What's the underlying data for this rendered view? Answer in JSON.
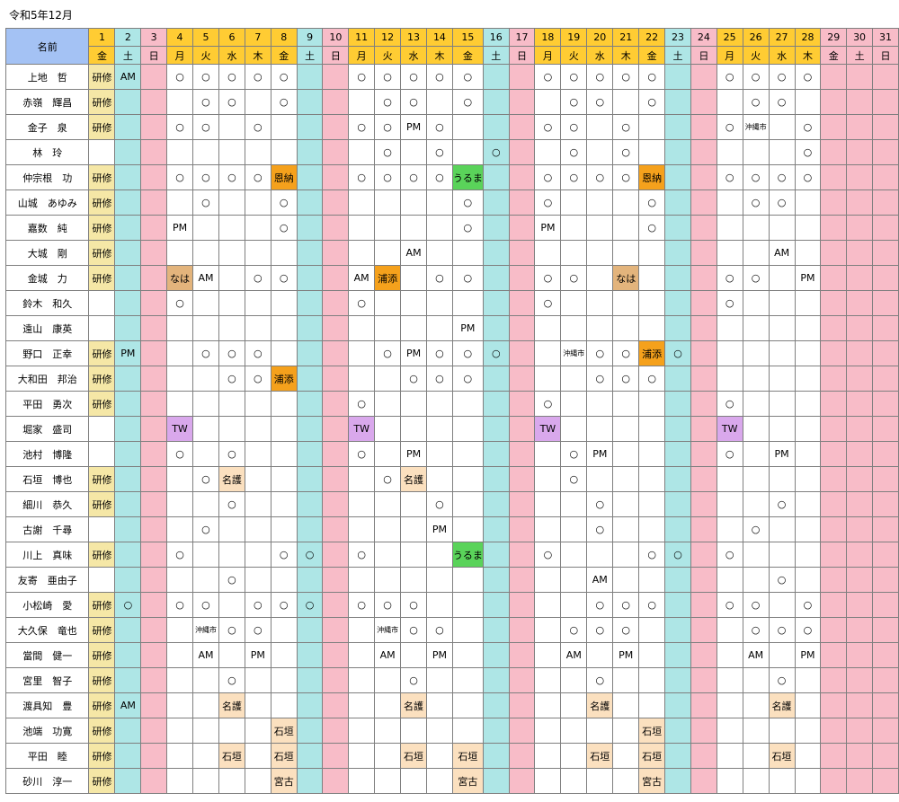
{
  "title": "令和5年12月",
  "name_header": "名前",
  "days": [
    {
      "d": "1",
      "w": "金",
      "t": "wd"
    },
    {
      "d": "2",
      "w": "土",
      "t": "sat"
    },
    {
      "d": "3",
      "w": "日",
      "t": "sun"
    },
    {
      "d": "4",
      "w": "月",
      "t": "wd"
    },
    {
      "d": "5",
      "w": "火",
      "t": "wd"
    },
    {
      "d": "6",
      "w": "水",
      "t": "wd"
    },
    {
      "d": "7",
      "w": "木",
      "t": "wd"
    },
    {
      "d": "8",
      "w": "金",
      "t": "wd"
    },
    {
      "d": "9",
      "w": "土",
      "t": "sat"
    },
    {
      "d": "10",
      "w": "日",
      "t": "sun"
    },
    {
      "d": "11",
      "w": "月",
      "t": "wd"
    },
    {
      "d": "12",
      "w": "火",
      "t": "wd"
    },
    {
      "d": "13",
      "w": "水",
      "t": "wd"
    },
    {
      "d": "14",
      "w": "木",
      "t": "wd"
    },
    {
      "d": "15",
      "w": "金",
      "t": "wd"
    },
    {
      "d": "16",
      "w": "土",
      "t": "sat"
    },
    {
      "d": "17",
      "w": "日",
      "t": "sun"
    },
    {
      "d": "18",
      "w": "月",
      "t": "wd"
    },
    {
      "d": "19",
      "w": "火",
      "t": "wd"
    },
    {
      "d": "20",
      "w": "水",
      "t": "wd"
    },
    {
      "d": "21",
      "w": "木",
      "t": "wd"
    },
    {
      "d": "22",
      "w": "金",
      "t": "wd"
    },
    {
      "d": "23",
      "w": "土",
      "t": "sat"
    },
    {
      "d": "24",
      "w": "日",
      "t": "sun"
    },
    {
      "d": "25",
      "w": "月",
      "t": "wd"
    },
    {
      "d": "26",
      "w": "火",
      "t": "wd"
    },
    {
      "d": "27",
      "w": "水",
      "t": "wd"
    },
    {
      "d": "28",
      "w": "木",
      "t": "wd"
    },
    {
      "d": "29",
      "w": "金",
      "t": "hol"
    },
    {
      "d": "30",
      "w": "土",
      "t": "hol"
    },
    {
      "d": "31",
      "w": "日",
      "t": "hol"
    }
  ],
  "badge_colors": {
    "kenshu": "#f5e7a6",
    "orange": "#f5a11c",
    "tan": "#e3b47c",
    "peach": "#fbe0bf",
    "green": "#5ad35a",
    "purple": "#d9a8ec",
    "saturday": "#aee6e6",
    "sunday": "#f8bcc8",
    "weekday_header": "#ffcc33",
    "name_header": "#a4c2f4"
  },
  "rows": [
    {
      "name": "上地　哲",
      "cells": {
        "1": "研修",
        "2": "AM",
        "4": "○",
        "5": "○",
        "6": "○",
        "7": "○",
        "8": "○",
        "11": "○",
        "12": "○",
        "13": "○",
        "14": "○",
        "15": "○",
        "18": "○",
        "19": "○",
        "20": "○",
        "21": "○",
        "22": "○",
        "25": "○",
        "26": "○",
        "27": "○",
        "28": "○"
      }
    },
    {
      "name": "赤嶺　輝昌",
      "cells": {
        "1": "研修",
        "5": "○",
        "6": "○",
        "8": "○",
        "12": "○",
        "13": "○",
        "15": "○",
        "19": "○",
        "20": "○",
        "22": "○",
        "26": "○",
        "27": "○"
      }
    },
    {
      "name": "金子　泉",
      "cells": {
        "1": "研修",
        "4": "○",
        "5": "○",
        "7": "○",
        "11": "○",
        "12": "○",
        "13": "PM",
        "14": "○",
        "18": "○",
        "19": "○",
        "21": "○",
        "25": "○",
        "26": "沖縄市",
        "28": "○"
      }
    },
    {
      "name": "林　玲",
      "cells": {
        "12": "○",
        "14": "○",
        "16": "○",
        "19": "○",
        "21": "○",
        "28": "○"
      }
    },
    {
      "name": "仲宗根　功",
      "cells": {
        "1": "研修",
        "4": "○",
        "5": "○",
        "6": "○",
        "7": "○",
        "8": "恩納",
        "11": "○",
        "12": "○",
        "13": "○",
        "14": "○",
        "15": "うるま",
        "18": "○",
        "19": "○",
        "20": "○",
        "21": "○",
        "22": "恩納",
        "25": "○",
        "26": "○",
        "27": "○",
        "28": "○"
      }
    },
    {
      "name": "山城　あゆみ",
      "cells": {
        "1": "研修",
        "5": "○",
        "8": "○",
        "15": "○",
        "18": "○",
        "22": "○",
        "26": "○",
        "27": "○"
      }
    },
    {
      "name": "嘉数　純",
      "cells": {
        "1": "研修",
        "4": "PM",
        "8": "○",
        "15": "○",
        "18": "PM",
        "22": "○"
      }
    },
    {
      "name": "大城　剛",
      "cells": {
        "1": "研修",
        "13": "AM",
        "27": "AM"
      }
    },
    {
      "name": "金城　力",
      "cells": {
        "1": "研修",
        "4": "なは",
        "5": "AM",
        "7": "○",
        "8": "○",
        "11": "AM",
        "12": "浦添",
        "14": "○",
        "15": "○",
        "18": "○",
        "19": "○",
        "21": "なは",
        "25": "○",
        "26": "○",
        "28": "PM"
      }
    },
    {
      "name": "鈴木　和久",
      "cells": {
        "4": "○",
        "11": "○",
        "18": "○",
        "25": "○"
      }
    },
    {
      "name": "遠山　康英",
      "cells": {
        "15": "PM"
      }
    },
    {
      "name": "野口　正幸",
      "cells": {
        "1": "研修",
        "2": "PM",
        "5": "○",
        "6": "○",
        "7": "○",
        "12": "○",
        "13": "PM",
        "14": "○",
        "15": "○",
        "16": "○",
        "19": "沖縄市",
        "20": "○",
        "21": "○",
        "22": "浦添",
        "23": "○"
      }
    },
    {
      "name": "大和田　邦治",
      "cells": {
        "1": "研修",
        "6": "○",
        "7": "○",
        "8": "浦添",
        "13": "○",
        "14": "○",
        "15": "○",
        "20": "○",
        "21": "○",
        "22": "○"
      }
    },
    {
      "name": "平田　勇次",
      "cells": {
        "1": "研修",
        "11": "○",
        "18": "○",
        "25": "○"
      }
    },
    {
      "name": "堀家　盛司",
      "cells": {
        "4": "TW",
        "11": "TW",
        "18": "TW",
        "25": "TW"
      }
    },
    {
      "name": "池村　博隆",
      "cells": {
        "4": "○",
        "6": "○",
        "11": "○",
        "13": "PM",
        "19": "○",
        "20": "PM",
        "25": "○",
        "27": "PM"
      }
    },
    {
      "name": "石垣　博也",
      "cells": {
        "1": "研修",
        "5": "○",
        "6": "名護",
        "12": "○",
        "13": "名護",
        "19": "○"
      }
    },
    {
      "name": "細川　恭久",
      "cells": {
        "1": "研修",
        "6": "○",
        "14": "○",
        "20": "○",
        "27": "○"
      }
    },
    {
      "name": "古謝　千尋",
      "cells": {
        "5": "○",
        "14": "PM",
        "20": "○",
        "26": "○"
      }
    },
    {
      "name": "川上　真味",
      "cells": {
        "1": "研修",
        "4": "○",
        "8": "○",
        "9": "○",
        "11": "○",
        "15": "うるま",
        "18": "○",
        "22": "○",
        "23": "○",
        "25": "○"
      }
    },
    {
      "name": "友寄　亜由子",
      "cells": {
        "6": "○",
        "20": "AM",
        "27": "○"
      }
    },
    {
      "name": "小松崎　愛",
      "cells": {
        "1": "研修",
        "2": "○",
        "4": "○",
        "5": "○",
        "7": "○",
        "8": "○",
        "9": "○",
        "11": "○",
        "12": "○",
        "13": "○",
        "20": "○",
        "21": "○",
        "22": "○",
        "25": "○",
        "26": "○",
        "28": "○"
      }
    },
    {
      "name": "大久保　竜也",
      "cells": {
        "1": "研修",
        "5": "沖縄市",
        "6": "○",
        "7": "○",
        "12": "沖縄市",
        "13": "○",
        "14": "○",
        "19": "○",
        "20": "○",
        "21": "○",
        "26": "○",
        "27": "○",
        "28": "○"
      }
    },
    {
      "name": "當間　健一",
      "cells": {
        "1": "研修",
        "5": "AM",
        "7": "PM",
        "12": "AM",
        "14": "PM",
        "19": "AM",
        "21": "PM",
        "26": "AM",
        "28": "PM"
      }
    },
    {
      "name": "宮里　智子",
      "cells": {
        "1": "研修",
        "6": "○",
        "13": "○",
        "20": "○",
        "27": "○"
      }
    },
    {
      "name": "渡具知　豊",
      "cells": {
        "1": "研修",
        "2": "AM",
        "6": "名護",
        "13": "名護",
        "20": "名護",
        "27": "名護"
      }
    },
    {
      "name": "池端　功寛",
      "cells": {
        "1": "研修",
        "8": "石垣",
        "22": "石垣"
      }
    },
    {
      "name": "平田　睦",
      "cells": {
        "1": "研修",
        "6": "石垣",
        "8": "石垣",
        "13": "石垣",
        "15": "石垣",
        "20": "石垣",
        "22": "石垣",
        "27": "石垣"
      }
    },
    {
      "name": "砂川　淳一",
      "cells": {
        "1": "研修",
        "8": "宮古",
        "15": "宮古",
        "22": "宮古"
      }
    }
  ]
}
